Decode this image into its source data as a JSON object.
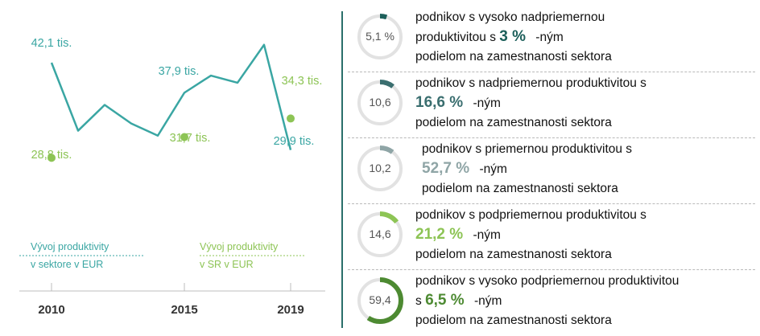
{
  "chart_data": {
    "type": "line",
    "x_ticks": [
      "2010",
      "2015",
      "2019"
    ],
    "series": [
      {
        "name": "Vývoj produktivity v sektore v EUR",
        "color": "#3aa6a3",
        "years": [
          2010,
          2011,
          2012,
          2013,
          2014,
          2015,
          2016,
          2017,
          2018,
          2019
        ],
        "values": [
          42.1,
          32.6,
          36.2,
          33.6,
          31.9,
          37.9,
          40.3,
          39.3,
          44.6,
          29.9
        ],
        "labeled_points": [
          {
            "year": 2010,
            "label": "42,1 tis."
          },
          {
            "year": 2015,
            "label": "37,9 tis."
          },
          {
            "year": 2019,
            "label": "29,9 tis."
          }
        ]
      },
      {
        "name": "Vývoj produktivity v SR v EUR",
        "color": "#8dc455",
        "points": [
          {
            "year": 2010,
            "value": 28.8,
            "label": "28,8 tis."
          },
          {
            "year": 2015,
            "value": 31.7,
            "label": "31,7 tis."
          },
          {
            "year": 2019,
            "value": 34.3,
            "label": "34,3 tis."
          }
        ]
      }
    ],
    "legend": [
      {
        "text": "Vývoj produktivity v sektore v EUR",
        "line1": "Vývoj produktivity",
        "line2": "v sektore v EUR"
      },
      {
        "text": "Vývoj produktivity v SR v EUR",
        "line1": "Vývoj produktivity",
        "line2": "v SR v EUR"
      }
    ]
  },
  "categories": [
    {
      "value": 5.1,
      "donut_label": "5,1 %",
      "color": "#1c5f5a",
      "line1": "podnikov s vysoko nadpriemernou",
      "line2_prefix": "produktivitou s",
      "pct": "3 %",
      "line2_suffix": "-ným",
      "line3": "podielom na zamestnanosti sektora"
    },
    {
      "value": 10.6,
      "donut_label": "10,6",
      "color": "#3a6e6f",
      "line1": "podnikov s nadpriemernou produktivitou s",
      "line2_prefix": "",
      "pct": "16,6 %",
      "line2_suffix": "-ným",
      "line3": "podielom na zamestnanosti sektora"
    },
    {
      "value": 10.2,
      "donut_label": "10,2",
      "color": "#8fa5a6",
      "line1": "podnikov s priemernou produktivitou s",
      "line2_prefix": "",
      "pct": "52,7 %",
      "line2_suffix": "-ným",
      "line3": "podielom na zamestnanosti sektora"
    },
    {
      "value": 14.6,
      "donut_label": "14,6",
      "color": "#8dc455",
      "line1": "podnikov s podpriemernou produktivitou s",
      "line2_prefix": "",
      "pct": "21,2 %",
      "line2_suffix": "-ným",
      "line3": "podielom na zamestnanosti sektora"
    },
    {
      "value": 59.4,
      "donut_label": "59,4",
      "color": "#4d8a32",
      "line1": "podnikov s vysoko podpriemernou produktivitou",
      "line2_prefix": "s",
      "pct": "6,5 %",
      "line2_suffix": "-ným",
      "line3": "podielom na zamestnanosti sektora"
    }
  ]
}
